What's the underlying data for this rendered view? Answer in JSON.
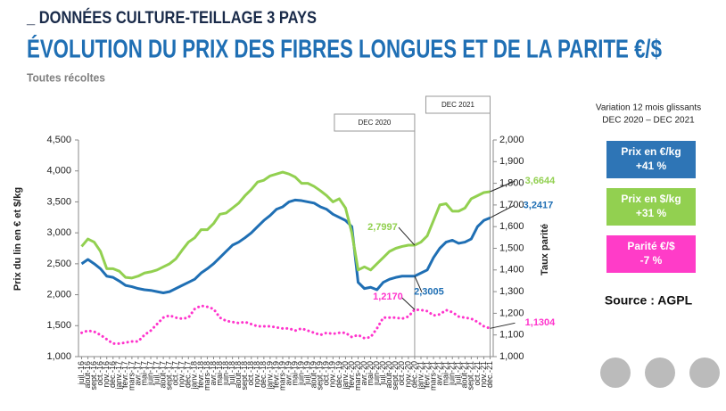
{
  "header": {
    "kicker": "_ DONNÉES CULTURE-TEILLAGE 3 PAYS",
    "title": "ÉVOLUTION DU PRIX DES FIBRES LONGUES ET DE LA PARITE €/$",
    "subtitle": "Toutes récoltes"
  },
  "chart_data": {
    "type": "line",
    "y_label": "Prix du lin en € et $/kg",
    "y2_label": "Taux parité",
    "categories": [
      "juil.-16",
      "août-16",
      "sept.-16",
      "oct.-16",
      "nov.-16",
      "déc.-16",
      "janv.-17",
      "févr.-17",
      "mars-17",
      "avr.-17",
      "mai-17",
      "juin-17",
      "juil.-17",
      "août-17",
      "sept.-17",
      "oct.-17",
      "nov.-17",
      "déc.-17",
      "janv.-18",
      "févr.-18",
      "mars-18",
      "avr.-18",
      "mai-18",
      "juin-18",
      "juil.-18",
      "août-18",
      "sept.-18",
      "oct.-18",
      "nov.-18",
      "déc.-18",
      "janv.-19",
      "févr.-19",
      "mars-19",
      "avr.-19",
      "mai-19",
      "juin-19",
      "juil.-19",
      "août-19",
      "sept.-19",
      "oct.-19",
      "nov.-19",
      "déc.-19",
      "janv.-20",
      "févr.-20",
      "mars-20",
      "avr.-20",
      "mai-20",
      "juin-20",
      "juil.-20",
      "août-20",
      "sept.-20",
      "oct.-20",
      "nov.-20",
      "déc.-20",
      "janv.-21",
      "févr.-21",
      "mars-21",
      "avr.-21",
      "mai-21",
      "juin-21",
      "juil.-21",
      "août-21",
      "sept.-21",
      "oct.-21",
      "nov.-21",
      "déc.-21"
    ],
    "series": [
      {
        "name": "Prix €/kg",
        "color": "#1f6fb4",
        "dash": "solid",
        "values": [
          2.5,
          2.57,
          2.5,
          2.42,
          2.3,
          2.28,
          2.22,
          2.15,
          2.13,
          2.1,
          2.08,
          2.07,
          2.05,
          2.03,
          2.05,
          2.1,
          2.15,
          2.2,
          2.25,
          2.35,
          2.42,
          2.5,
          2.6,
          2.7,
          2.8,
          2.85,
          2.92,
          3.0,
          3.1,
          3.2,
          3.28,
          3.38,
          3.42,
          3.5,
          3.53,
          3.52,
          3.5,
          3.48,
          3.42,
          3.38,
          3.3,
          3.25,
          3.2,
          3.1,
          2.2,
          2.1,
          2.12,
          2.08,
          2.2,
          2.25,
          2.28,
          2.3,
          2.3,
          2.3005,
          2.35,
          2.4,
          2.6,
          2.75,
          2.85,
          2.88,
          2.83,
          2.85,
          2.9,
          3.1,
          3.2,
          3.2417
        ],
        "value_labels": [
          null,
          null,
          null,
          null,
          null,
          null,
          null,
          null,
          null,
          null,
          null,
          null,
          null,
          null,
          null,
          null,
          null,
          null,
          null,
          null,
          null,
          null,
          null,
          null,
          null,
          null,
          null,
          null,
          null,
          null,
          null,
          null,
          null,
          null,
          null,
          null,
          null,
          null,
          null,
          null,
          null,
          null,
          null,
          null,
          null,
          null,
          null,
          null,
          null,
          null,
          null,
          null,
          null,
          "2,3005",
          null,
          null,
          null,
          null,
          null,
          null,
          null,
          null,
          null,
          null,
          null,
          "3,2417"
        ]
      },
      {
        "name": "Prix $/kg",
        "color": "#92d050",
        "dash": "solid",
        "values": [
          2.78,
          2.9,
          2.85,
          2.7,
          2.42,
          2.42,
          2.38,
          2.28,
          2.27,
          2.3,
          2.35,
          2.37,
          2.4,
          2.45,
          2.5,
          2.58,
          2.72,
          2.85,
          2.92,
          3.05,
          3.05,
          3.15,
          3.3,
          3.32,
          3.4,
          3.48,
          3.6,
          3.7,
          3.82,
          3.85,
          3.92,
          3.95,
          3.98,
          3.95,
          3.9,
          3.8,
          3.8,
          3.75,
          3.68,
          3.6,
          3.5,
          3.55,
          3.4,
          3.0,
          2.4,
          2.45,
          2.4,
          2.5,
          2.6,
          2.7,
          2.75,
          2.78,
          2.8,
          2.7997,
          2.85,
          2.95,
          3.2,
          3.45,
          3.47,
          3.35,
          3.35,
          3.4,
          3.55,
          3.6,
          3.65,
          3.6644
        ],
        "value_labels": [
          null,
          null,
          null,
          null,
          null,
          null,
          null,
          null,
          null,
          null,
          null,
          null,
          null,
          null,
          null,
          null,
          null,
          null,
          null,
          null,
          null,
          null,
          null,
          null,
          null,
          null,
          null,
          null,
          null,
          null,
          null,
          null,
          null,
          null,
          null,
          null,
          null,
          null,
          null,
          null,
          null,
          null,
          null,
          null,
          null,
          null,
          null,
          null,
          null,
          null,
          null,
          null,
          null,
          "2,7997",
          null,
          null,
          null,
          null,
          null,
          null,
          null,
          null,
          null,
          null,
          null,
          "3,6644"
        ]
      },
      {
        "name": "Parité €/$",
        "color": "#ff33cc",
        "dash": "dotted",
        "axis": "y2",
        "values": [
          1.11,
          1.12,
          1.115,
          1.1,
          1.08,
          1.06,
          1.06,
          1.065,
          1.07,
          1.07,
          1.1,
          1.12,
          1.15,
          1.18,
          1.19,
          1.18,
          1.175,
          1.18,
          1.22,
          1.235,
          1.23,
          1.22,
          1.18,
          1.165,
          1.16,
          1.155,
          1.16,
          1.15,
          1.14,
          1.14,
          1.14,
          1.135,
          1.13,
          1.13,
          1.12,
          1.13,
          1.12,
          1.11,
          1.1,
          1.11,
          1.105,
          1.11,
          1.11,
          1.09,
          1.1,
          1.085,
          1.09,
          1.13,
          1.18,
          1.18,
          1.18,
          1.175,
          1.185,
          1.217,
          1.215,
          1.21,
          1.19,
          1.195,
          1.215,
          1.205,
          1.185,
          1.18,
          1.175,
          1.16,
          1.14,
          1.1304
        ],
        "value_labels": [
          null,
          null,
          null,
          null,
          null,
          null,
          null,
          null,
          null,
          null,
          null,
          null,
          null,
          null,
          null,
          null,
          null,
          null,
          null,
          null,
          null,
          null,
          null,
          null,
          null,
          null,
          null,
          null,
          null,
          null,
          null,
          null,
          null,
          null,
          null,
          null,
          null,
          null,
          null,
          null,
          null,
          null,
          null,
          null,
          null,
          null,
          null,
          null,
          null,
          null,
          null,
          null,
          null,
          "1,2170",
          null,
          null,
          null,
          null,
          null,
          null,
          null,
          null,
          null,
          null,
          null,
          "1,1304"
        ]
      }
    ],
    "ylim": [
      1,
      4.5
    ],
    "yticks": [
      {
        "value": 1,
        "label": "1,000"
      },
      {
        "value": 1.5,
        "label": "1,500"
      },
      {
        "value": 2,
        "label": "2,000"
      },
      {
        "value": 2.5,
        "label": "2,500"
      },
      {
        "value": 3,
        "label": "3,000"
      },
      {
        "value": 3.5,
        "label": "3,500"
      },
      {
        "value": 4,
        "label": "4,000"
      },
      {
        "value": 4.5,
        "label": "4,500"
      }
    ],
    "y2lim": [
      1,
      2
    ],
    "y2ticks": [
      {
        "value": 1,
        "label": "1,000"
      },
      {
        "value": 1.1,
        "label": "1,100"
      },
      {
        "value": 1.2,
        "label": "1,200"
      },
      {
        "value": 1.3,
        "label": "1,300"
      },
      {
        "value": 1.4,
        "label": "1,400"
      },
      {
        "value": 1.5,
        "label": "1,500"
      },
      {
        "value": 1.6,
        "label": "1,600"
      },
      {
        "value": 1.7,
        "label": "1,700"
      },
      {
        "value": 1.8,
        "label": "1,800"
      },
      {
        "value": 1.9,
        "label": "1,900"
      },
      {
        "value": 2,
        "label": "2,000"
      }
    ],
    "markers": [
      {
        "label": "DEC 2020",
        "category": "déc.-20"
      },
      {
        "label": "DEC 2021",
        "category": "déc.-21"
      }
    ]
  },
  "summary": {
    "title": "Variation 12 mois glissants",
    "period": "DEC 2020 – DEC 2021",
    "boxes": [
      {
        "label": "Prix en €/kg",
        "value": "+41 %",
        "color": "#2e75b6"
      },
      {
        "label": "Prix en $/kg",
        "value": "+31 %",
        "color": "#92d050"
      },
      {
        "label": "Parité €/$",
        "value": "-7 %",
        "color": "#ff3cc8"
      }
    ],
    "source": "Source : AGPL"
  }
}
